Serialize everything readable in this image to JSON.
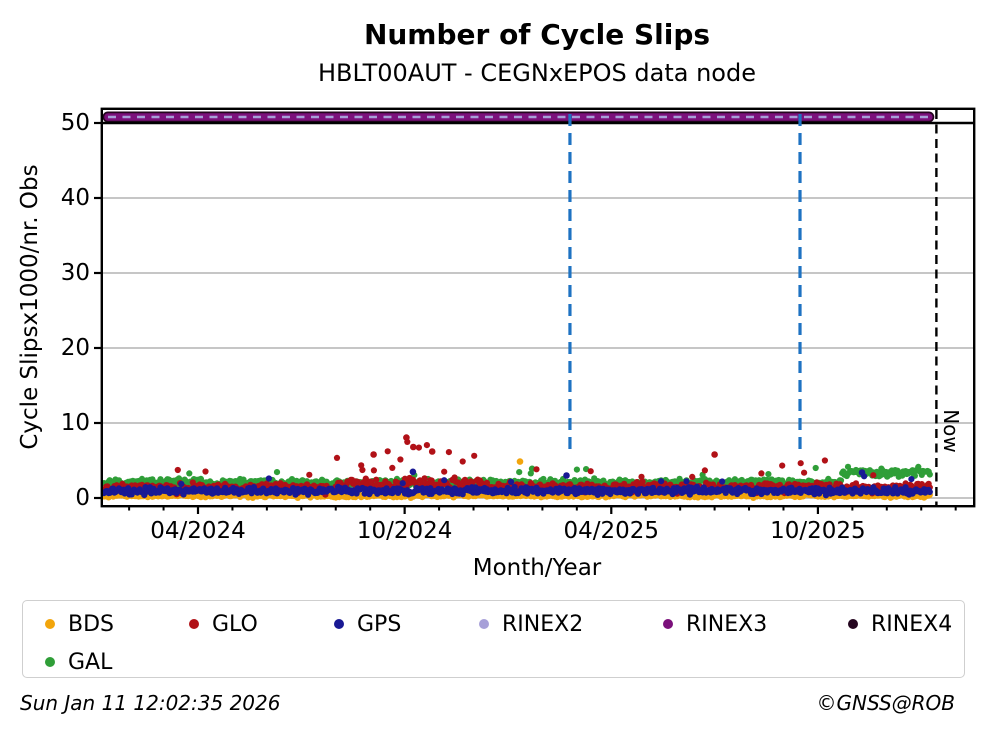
{
  "title": "Number of Cycle Slips",
  "subtitle": "HBLT00AUT - CEGNxEPOS data node",
  "footer": {
    "timestamp": "Sun Jan 11 12:02:35 2026",
    "credit": "©GNSS@ROB"
  },
  "legend": {
    "items": [
      {
        "label": "BDS",
        "color": "#f2a50c"
      },
      {
        "label": "GLO",
        "color": "#b11117"
      },
      {
        "label": "GPS",
        "color": "#191994"
      },
      {
        "label": "RINEX2",
        "color": "#a7a0d8"
      },
      {
        "label": "RINEX3",
        "color": "#7b107b"
      },
      {
        "label": "RINEX4",
        "color": "#24051f"
      },
      {
        "label": "GAL",
        "color": "#2f9e38"
      }
    ]
  },
  "chart_data": {
    "type": "scatter",
    "title": "Number of Cycle Slips",
    "subtitle": "HBLT00AUT - CEGNxEPOS data node",
    "xlabel": "Month/Year",
    "ylabel": "Cycle Slipsx1000/nr. Obs",
    "ylim": [
      -0.7,
      51.7
    ],
    "y_ticks": [
      0,
      10,
      20,
      30,
      40,
      50
    ],
    "y_gridlines": [
      0,
      10,
      20,
      30,
      40
    ],
    "grid": true,
    "x_major_tick_labels": [
      "04/2024",
      "10/2024",
      "04/2025",
      "10/2025"
    ],
    "x_minor_tick_interval": "1 month",
    "x_range": [
      "2024-01-09",
      "2026-02-14"
    ],
    "time_axis_note": "m = months after 2024-04-01",
    "legend_position": "bottom",
    "point_values_note": "daily scatter of cycle slips x1000 per nr. of observations, per constellation; baseline/noise/spikes read from plot",
    "series": [
      {
        "name": "BDS",
        "color": "#f2a50c",
        "baseline": 0.32,
        "noise": 0.22,
        "min": 0.02,
        "spike_chance": 0.02,
        "spike_range": [
          0.9,
          1.9
        ],
        "regions": [],
        "anomalies": [
          {
            "date": "2025-01-10",
            "m": 9.35,
            "value": 4.85
          }
        ]
      },
      {
        "name": "GAL",
        "color": "#2f9e38",
        "baseline": 2.05,
        "noise": 0.42,
        "min": 1.0,
        "spike_chance": 0.015,
        "spike_range": [
          3.0,
          4.2
        ],
        "regions": [
          {
            "from_m": 18.7,
            "to_m": 21.3,
            "baseline": 3.35,
            "noise": 0.45,
            "min": 2.4,
            "note": "elevated GAL level Nov 2025 - Jan 2026"
          }
        ],
        "anomalies": [
          {
            "date": "2025-01-14",
            "m": 9.7,
            "value": 3.9
          }
        ]
      },
      {
        "name": "GLO",
        "color": "#b11117",
        "baseline": 1.35,
        "noise": 0.55,
        "min": 0.15,
        "spike_chance": 0.012,
        "spike_range": [
          2.8,
          4.0
        ],
        "regions": [
          {
            "from_m": 4.0,
            "to_m": 8.3,
            "baseline": 1.8,
            "noise": 0.7,
            "spike_chance": 0.1,
            "spike_range": [
              3.4,
              7.6
            ],
            "note": "GLO spikes Aug-Dec 2024, up to ~8"
          },
          {
            "from_m": 16.9,
            "to_m": 18.7,
            "baseline": 1.5,
            "noise": 0.6,
            "spike_chance": 0.08,
            "spike_range": [
              3.2,
              5.0
            ],
            "note": "GLO spikes Sep-Oct 2025"
          }
        ],
        "anomalies": [
          {
            "date": "2024-09-03",
            "m": 5.1,
            "value": 5.8
          },
          {
            "date": "2024-10-02",
            "m": 6.05,
            "value": 8.05
          },
          {
            "date": "2024-10-08",
            "m": 6.25,
            "value": 6.8
          },
          {
            "date": "2024-10-25",
            "m": 6.8,
            "value": 6.2
          },
          {
            "date": "2025-07-01",
            "m": 15.0,
            "value": 5.8
          }
        ]
      },
      {
        "name": "GPS",
        "color": "#191994",
        "baseline": 0.95,
        "noise": 0.38,
        "min": 0.22,
        "spike_chance": 0.012,
        "spike_range": [
          1.8,
          3.0
        ],
        "regions": [],
        "anomalies": [
          {
            "date": "2024-10-08",
            "m": 6.24,
            "value": 3.5
          },
          {
            "date": "2025-02-22",
            "m": 10.7,
            "value": 3.0
          },
          {
            "date": "2025-11-09",
            "m": 19.28,
            "value": 3.4
          }
        ]
      }
    ],
    "rinex_band": {
      "note": "RINEX2/RINEX3/RINEX4 availability lines plotted at top of axes",
      "value": 50.8,
      "from_m": -2.73,
      "to_m": 21.22,
      "rinex4_color": "#24051f",
      "rinex3_color": "#7b107b",
      "rinex2_color": "#a7a0d8"
    },
    "threshold_line": {
      "value": 50,
      "color": "#000000",
      "style": "solid"
    },
    "event_lines": {
      "color": "#1e72c2",
      "style": "dashed",
      "items": [
        {
          "date": "2025-02-25",
          "m": 10.8
        },
        {
          "date": "2025-09-15",
          "m": 17.48
        }
      ]
    },
    "now_line": {
      "label": "Now",
      "date": "2026-01-11",
      "m": 21.44,
      "color": "#000000",
      "style": "dashed"
    }
  }
}
